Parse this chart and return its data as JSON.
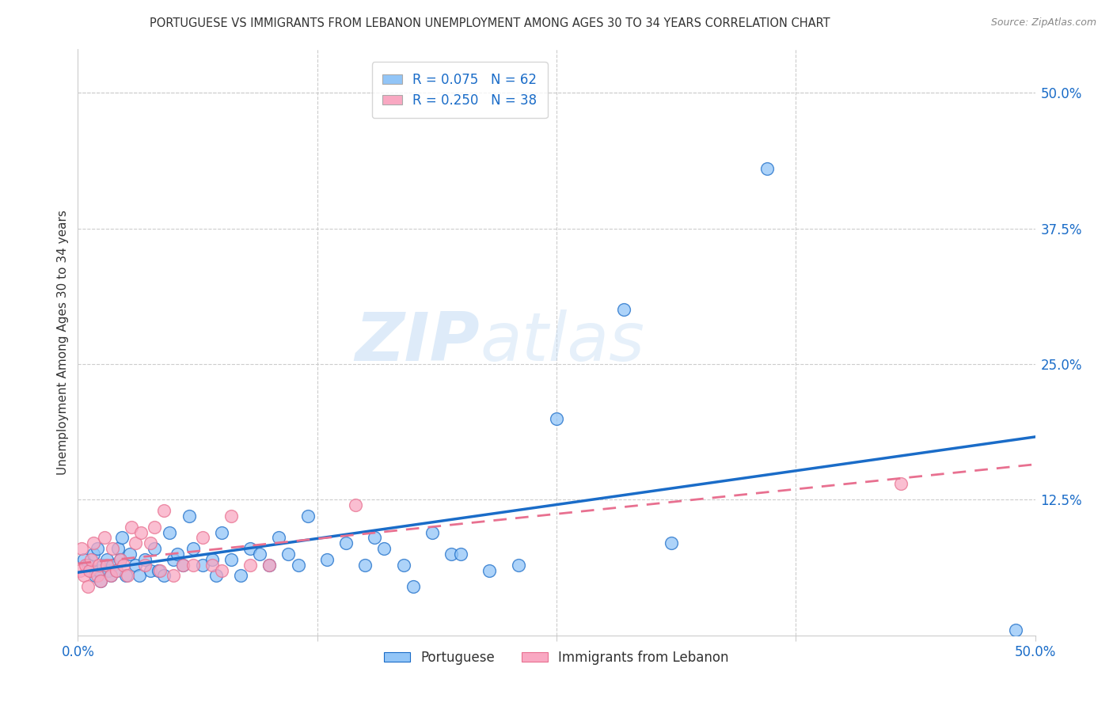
{
  "title": "PORTUGUESE VS IMMIGRANTS FROM LEBANON UNEMPLOYMENT AMONG AGES 30 TO 34 YEARS CORRELATION CHART",
  "source": "Source: ZipAtlas.com",
  "ylabel": "Unemployment Among Ages 30 to 34 years",
  "xlim": [
    0.0,
    0.5
  ],
  "ylim": [
    0.0,
    0.54
  ],
  "xtick_positions": [
    0.0,
    0.125,
    0.25,
    0.375,
    0.5
  ],
  "xtick_labels_show": [
    "0.0%",
    "",
    "",
    "",
    "50.0%"
  ],
  "ytick_positions": [
    0.0,
    0.125,
    0.25,
    0.375,
    0.5
  ],
  "ytick_labels_right": [
    "",
    "12.5%",
    "25.0%",
    "37.5%",
    "50.0%"
  ],
  "legend_r1": "0.075",
  "legend_n1": "62",
  "legend_r2": "0.250",
  "legend_n2": "38",
  "legend_label1": "Portuguese",
  "legend_label2": "Immigrants from Lebanon",
  "color_blue": "#92C5F7",
  "color_pink": "#F9A8C2",
  "color_blue_line": "#1A6CC8",
  "color_pink_line": "#E87090",
  "watermark_zip": "ZIP",
  "watermark_atlas": "atlas",
  "portuguese_x": [
    0.003,
    0.005,
    0.007,
    0.008,
    0.009,
    0.01,
    0.011,
    0.012,
    0.013,
    0.015,
    0.016,
    0.017,
    0.018,
    0.02,
    0.021,
    0.022,
    0.023,
    0.025,
    0.027,
    0.03,
    0.032,
    0.035,
    0.038,
    0.04,
    0.042,
    0.045,
    0.048,
    0.05,
    0.052,
    0.055,
    0.058,
    0.06,
    0.065,
    0.07,
    0.072,
    0.075,
    0.08,
    0.085,
    0.09,
    0.095,
    0.1,
    0.105,
    0.11,
    0.115,
    0.12,
    0.13,
    0.14,
    0.15,
    0.155,
    0.16,
    0.17,
    0.175,
    0.185,
    0.195,
    0.2,
    0.215,
    0.23,
    0.25,
    0.285,
    0.31,
    0.36,
    0.49
  ],
  "portuguese_y": [
    0.07,
    0.065,
    0.06,
    0.075,
    0.055,
    0.08,
    0.06,
    0.05,
    0.065,
    0.07,
    0.06,
    0.055,
    0.065,
    0.06,
    0.08,
    0.07,
    0.09,
    0.055,
    0.075,
    0.065,
    0.055,
    0.07,
    0.06,
    0.08,
    0.06,
    0.055,
    0.095,
    0.07,
    0.075,
    0.065,
    0.11,
    0.08,
    0.065,
    0.07,
    0.055,
    0.095,
    0.07,
    0.055,
    0.08,
    0.075,
    0.065,
    0.09,
    0.075,
    0.065,
    0.11,
    0.07,
    0.085,
    0.065,
    0.09,
    0.08,
    0.065,
    0.045,
    0.095,
    0.075,
    0.075,
    0.06,
    0.065,
    0.2,
    0.3,
    0.085,
    0.43,
    0.005
  ],
  "lebanon_x": [
    0.001,
    0.002,
    0.003,
    0.004,
    0.005,
    0.006,
    0.007,
    0.008,
    0.01,
    0.011,
    0.012,
    0.014,
    0.015,
    0.017,
    0.018,
    0.02,
    0.022,
    0.024,
    0.026,
    0.028,
    0.03,
    0.033,
    0.035,
    0.038,
    0.04,
    0.043,
    0.045,
    0.05,
    0.055,
    0.06,
    0.065,
    0.07,
    0.075,
    0.08,
    0.09,
    0.1,
    0.145,
    0.43
  ],
  "lebanon_y": [
    0.06,
    0.08,
    0.055,
    0.065,
    0.045,
    0.06,
    0.07,
    0.085,
    0.055,
    0.065,
    0.05,
    0.09,
    0.065,
    0.055,
    0.08,
    0.06,
    0.07,
    0.065,
    0.055,
    0.1,
    0.085,
    0.095,
    0.065,
    0.085,
    0.1,
    0.06,
    0.115,
    0.055,
    0.065,
    0.065,
    0.09,
    0.065,
    0.06,
    0.11,
    0.065,
    0.065,
    0.12,
    0.14
  ],
  "grid_color": "#CCCCCC",
  "spine_color": "#CCCCCC"
}
